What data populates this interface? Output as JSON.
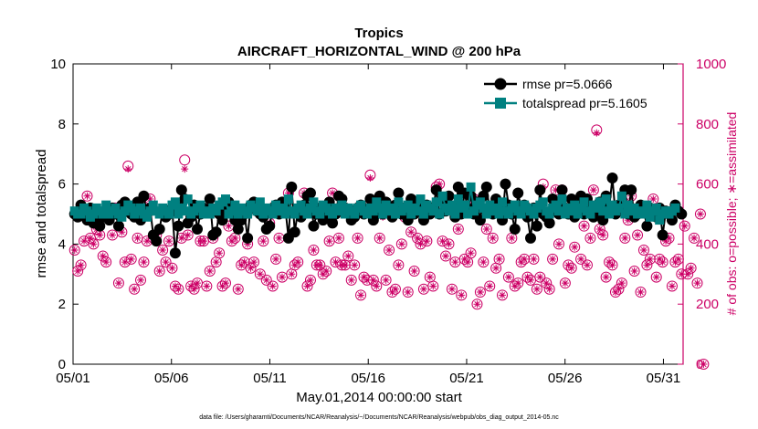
{
  "chart_data": {
    "type": "line",
    "title": "Tropics",
    "subtitle": "AIRCRAFT_HORIZONTAL_WIND @ 200 hPa",
    "xlabel": "May.01,2014 00:00:00 start",
    "ylabel": "rmse and totalspread",
    "y2label": "# of obs: o=possible; ∗=assimilated",
    "footnote": "data file: /Users/gharamti/Documents/NCAR/Reanalysis/~/Documents/NCAR/Reanalysis/webpub/obs_diag_output_2014-05.nc",
    "xlim": [
      0,
      31
    ],
    "ylim": [
      0,
      10
    ],
    "y2lim": [
      0,
      1000
    ],
    "xtick_values": [
      0,
      5,
      10,
      15,
      20,
      25,
      30
    ],
    "xtick_labels": [
      "05/01",
      "05/06",
      "05/11",
      "05/16",
      "05/21",
      "05/26",
      "05/31"
    ],
    "ytick_values": [
      0,
      2,
      4,
      6,
      8,
      10
    ],
    "ytick_labels": [
      "0",
      "2",
      "4",
      "6",
      "8",
      "10"
    ],
    "y2tick_values": [
      0,
      200,
      400,
      600,
      800,
      1000
    ],
    "y2tick_labels": [
      "0",
      "200",
      "400",
      "600",
      "800",
      "1000"
    ],
    "legend_position": "top-right",
    "colors": {
      "rmse": "#000000",
      "totalspread": "#008080",
      "obs": "#cc0066",
      "axis": "#000000"
    },
    "series": [
      {
        "name": "rmse pr=5.0666",
        "values": [
          5.0,
          4.9,
          5.3,
          5.1,
          4.8,
          5.2,
          4.7,
          5.0,
          4.6,
          4.9,
          5.1,
          4.8,
          5.2,
          5.0,
          4.6,
          5.3,
          5.4,
          5.2,
          5.0,
          4.9,
          5.4,
          4.8,
          5.6,
          5.0,
          5.2,
          4.3,
          4.1,
          4.5,
          5.1,
          4.9,
          5.0,
          5.2,
          3.7,
          4.6,
          5.8,
          5.5,
          4.7,
          4.9,
          5.3,
          4.5,
          5.0,
          5.2,
          5.1,
          5.5,
          4.3,
          4.4,
          5.0,
          4.8,
          5.2,
          5.4,
          5.1,
          4.8,
          4.5,
          4.8,
          5.0,
          4.2,
          5.3,
          5.4,
          5.1,
          5.0,
          4.9,
          4.5,
          4.6,
          5.2,
          5.3,
          5.0,
          5.4,
          5.2,
          4.2,
          5.9,
          4.4,
          5.1,
          4.9,
          5.3,
          5.6,
          5.7,
          4.6,
          5.0,
          5.2,
          4.8,
          4.9,
          5.4,
          4.7,
          5.0,
          5.6,
          5.5,
          5.2,
          5.1,
          4.8,
          4.9,
          5.2,
          5.3,
          5.0,
          5.1,
          5.5,
          4.8,
          5.0,
          5.6,
          5.0,
          5.4,
          5.1,
          4.9,
          5.3,
          5.7,
          5.0,
          5.2,
          4.8,
          5.5,
          5.0,
          5.4,
          5.1,
          4.8,
          5.3,
          5.0,
          5.2,
          5.8,
          5.0,
          5.4,
          5.1,
          5.6,
          5.2,
          4.9,
          5.9,
          5.0,
          5.7,
          5.2,
          5.6,
          5.0,
          5.4,
          4.8,
          5.6,
          5.9,
          5.1,
          5.0,
          5.5,
          5.2,
          4.8,
          6.0,
          5.3,
          5.0,
          4.5,
          5.7,
          5.2,
          5.3,
          4.9,
          4.2,
          5.2,
          4.6,
          5.8,
          5.0,
          4.9,
          4.7,
          5.5,
          5.1,
          5.0,
          5.8,
          5.2,
          5.0,
          5.5,
          4.9,
          5.3,
          5.6,
          5.0,
          5.5,
          5.2,
          4.9,
          5.0,
          5.4,
          4.8,
          5.6,
          5.2,
          6.2,
          5.0,
          5.3,
          5.1,
          5.8,
          5.0,
          5.8,
          4.9,
          5.0,
          5.3,
          5.1,
          4.6,
          5.2,
          5.0,
          4.9,
          5.2,
          4.3,
          5.1,
          5.0,
          4.8,
          5.3,
          5.1,
          5.0
        ]
      },
      {
        "name": "totalspread pr=5.1605",
        "values": [
          5.1,
          5.0,
          5.0,
          5.2,
          5.1,
          4.9,
          5.0,
          5.2,
          5.1,
          5.0,
          5.3,
          5.0,
          5.1,
          5.2,
          5.0,
          4.9,
          5.1,
          5.3,
          5.2,
          5.0,
          5.1,
          5.2,
          5.0,
          4.9,
          5.1,
          5.3,
          5.1,
          5.0,
          5.2,
          5.1,
          5.0,
          5.3,
          5.4,
          5.0,
          5.2,
          5.1,
          5.5,
          5.0,
          5.1,
          5.2,
          5.3,
          5.0,
          5.1,
          5.0,
          5.2,
          5.1,
          5.3,
          5.4,
          5.5,
          5.0,
          5.1,
          5.3,
          5.0,
          5.2,
          5.1,
          5.0,
          5.3,
          5.2,
          5.1,
          5.4,
          5.0,
          5.2,
          5.1,
          5.0,
          5.3,
          5.1,
          5.2,
          5.0,
          5.5,
          5.1,
          5.0,
          5.2,
          5.3,
          5.1,
          5.0,
          5.2,
          5.4,
          5.1,
          5.0,
          5.3,
          5.2,
          5.1,
          5.0,
          5.2,
          5.1,
          5.3,
          5.0,
          5.2,
          5.1,
          5.0,
          5.2,
          5.3,
          5.1,
          5.0,
          5.2,
          5.1,
          5.4,
          5.2,
          5.0,
          5.3,
          5.1,
          5.2,
          5.0,
          5.4,
          5.1,
          5.2,
          5.3,
          5.0,
          5.2,
          5.1,
          5.5,
          5.0,
          5.3,
          5.2,
          5.1,
          5.4,
          5.0,
          5.6,
          5.2,
          5.1,
          5.3,
          5.0,
          5.5,
          5.2,
          5.3,
          5.0,
          5.9,
          5.1,
          5.3,
          5.4,
          5.2,
          5.0,
          5.3,
          5.1,
          5.2,
          5.0,
          5.4,
          5.1,
          5.0,
          5.2,
          5.3,
          5.1,
          5.0,
          5.3,
          5.2,
          5.1,
          5.0,
          5.2,
          5.3,
          5.4,
          5.1,
          5.0,
          5.2,
          5.3,
          5.1,
          5.5,
          5.0,
          5.2,
          5.1,
          5.3,
          5.0,
          5.2,
          5.4,
          5.1,
          5.0,
          5.3,
          5.2,
          5.4,
          5.1,
          5.5,
          5.0,
          5.3,
          5.1,
          5.2,
          5.6,
          5.0,
          5.3,
          5.1,
          5.2,
          5.0,
          5.1,
          5.0,
          5.3,
          4.9,
          5.1,
          5.2,
          4.8,
          5.0,
          5.1,
          5.0,
          5.1,
          5.2
        ]
      },
      {
        "name": "# obs possible",
        "values": [
          380,
          310,
          330,
          410,
          560,
          420,
          400,
          450,
          430,
          360,
          340,
          500,
          430,
          520,
          270,
          440,
          340,
          660,
          350,
          250,
          420,
          280,
          340,
          410,
          550,
          420,
          430,
          310,
          380,
          340,
          410,
          320,
          260,
          250,
          420,
          680,
          430,
          260,
          250,
          270,
          410,
          410,
          260,
          310,
          420,
          340,
          370,
          260,
          270,
          460,
          410,
          420,
          250,
          330,
          340,
          400,
          320,
          340,
          520,
          300,
          410,
          280,
          470,
          260,
          350,
          420,
          290,
          540,
          570,
          300,
          330,
          340,
          500,
          570,
          260,
          280,
          380,
          330,
          330,
          300,
          310,
          410,
          570,
          340,
          420,
          330,
          330,
          360,
          280,
          330,
          420,
          230,
          290,
          280,
          630,
          280,
          260,
          420,
          500,
          280,
          380,
          240,
          250,
          330,
          400,
          490,
          240,
          440,
          310,
          420,
          400,
          250,
          410,
          290,
          260,
          590,
          600,
          410,
          360,
          400,
          250,
          340,
          450,
          230,
          350,
          340,
          370,
          550,
          200,
          240,
          340,
          450,
          260,
          420,
          320,
          350,
          230,
          500,
          290,
          420,
          260,
          270,
          340,
          350,
          290,
          280,
          350,
          250,
          290,
          600,
          270,
          250,
          350,
          580,
          400,
          580,
          270,
          330,
          320,
          390,
          540,
          350,
          460,
          330,
          420,
          580,
          780,
          450,
          430,
          290,
          340,
          330,
          240,
          250,
          270,
          420,
          480,
          560,
          310,
          430,
          240,
          380,
          330,
          350,
          550,
          290,
          350,
          340,
          410,
          420,
          260,
          340,
          350,
          300,
          460,
          300,
          320,
          420,
          270,
          500,
          0
        ]
      },
      {
        "name": "# obs assimilated",
        "values": [
          380,
          310,
          330,
          410,
          560,
          420,
          400,
          450,
          430,
          360,
          340,
          500,
          430,
          520,
          270,
          440,
          340,
          650,
          350,
          250,
          420,
          280,
          340,
          410,
          550,
          420,
          430,
          310,
          380,
          340,
          410,
          320,
          260,
          250,
          420,
          650,
          430,
          260,
          250,
          270,
          410,
          410,
          260,
          310,
          420,
          340,
          370,
          260,
          270,
          460,
          410,
          420,
          250,
          330,
          340,
          400,
          320,
          340,
          520,
          300,
          410,
          280,
          470,
          260,
          350,
          420,
          290,
          540,
          570,
          300,
          330,
          340,
          500,
          570,
          260,
          280,
          380,
          330,
          330,
          300,
          310,
          410,
          570,
          340,
          420,
          330,
          330,
          360,
          280,
          330,
          420,
          230,
          290,
          280,
          620,
          280,
          260,
          420,
          490,
          280,
          380,
          240,
          250,
          330,
          400,
          490,
          240,
          440,
          310,
          420,
          400,
          250,
          410,
          290,
          260,
          580,
          600,
          410,
          360,
          400,
          250,
          340,
          450,
          230,
          350,
          340,
          370,
          550,
          200,
          240,
          340,
          450,
          260,
          420,
          320,
          350,
          230,
          500,
          290,
          420,
          260,
          270,
          340,
          350,
          290,
          280,
          350,
          250,
          290,
          590,
          270,
          250,
          350,
          580,
          400,
          580,
          270,
          330,
          320,
          390,
          540,
          350,
          460,
          330,
          420,
          580,
          770,
          450,
          430,
          290,
          340,
          330,
          240,
          250,
          270,
          420,
          480,
          560,
          310,
          430,
          240,
          380,
          330,
          350,
          550,
          290,
          350,
          340,
          410,
          420,
          260,
          340,
          350,
          300,
          460,
          300,
          320,
          420,
          270,
          500,
          0
        ]
      }
    ]
  }
}
